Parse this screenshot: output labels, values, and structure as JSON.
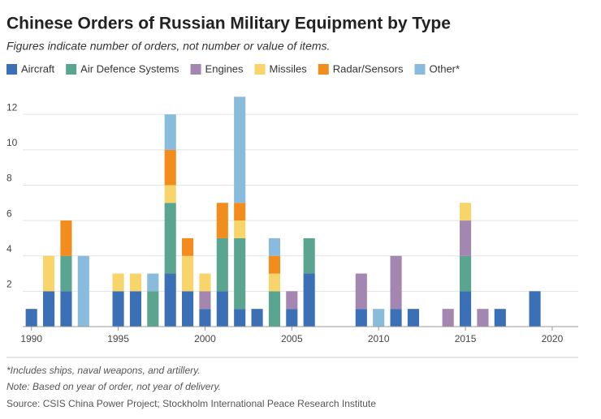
{
  "chart_data": {
    "type": "bar",
    "stacked": true,
    "title": "Chinese Orders of Russian Military Equipment by Type",
    "subtitle": "Figures indicate number of orders, not number or value of items.",
    "notes": [
      "*Includes ships, naval weapons, and artillery.",
      "Note: Based on year of order, not year of delivery."
    ],
    "source": "Source: CSIS China Power Project; Stockholm International Peace Research Institute",
    "x": [
      1990,
      1991,
      1992,
      1993,
      1995,
      1996,
      1997,
      1998,
      1999,
      2000,
      2001,
      2002,
      2003,
      2004,
      2005,
      2006,
      2009,
      2010,
      2011,
      2012,
      2014,
      2015,
      2016,
      2017,
      2019
    ],
    "series": [
      {
        "name": "Aircraft",
        "color": "#3b6fb6",
        "values": [
          1,
          2,
          2,
          0,
          2,
          2,
          0,
          3,
          2,
          1,
          2,
          1,
          1,
          0,
          1,
          3,
          1,
          0,
          1,
          1,
          0,
          2,
          0,
          1,
          2
        ]
      },
      {
        "name": "Air Defence Systems",
        "color": "#59a590",
        "values": [
          0,
          0,
          2,
          0,
          0,
          0,
          2,
          4,
          0,
          0,
          3,
          4,
          0,
          2,
          0,
          2,
          0,
          0,
          0,
          0,
          0,
          2,
          0,
          0,
          0
        ]
      },
      {
        "name": "Engines",
        "color": "#a387b0",
        "values": [
          0,
          0,
          0,
          0,
          0,
          0,
          0,
          0,
          0,
          1,
          0,
          0,
          0,
          0,
          1,
          0,
          2,
          0,
          3,
          0,
          1,
          2,
          1,
          0,
          0
        ]
      },
      {
        "name": "Missiles",
        "color": "#f7d56a",
        "values": [
          0,
          2,
          0,
          0,
          1,
          1,
          0,
          1,
          2,
          1,
          0,
          1,
          0,
          1,
          0,
          0,
          0,
          0,
          0,
          0,
          0,
          1,
          0,
          0,
          0
        ]
      },
      {
        "name": "Radar/Sensors",
        "color": "#f28c1d",
        "values": [
          0,
          0,
          2,
          0,
          0,
          0,
          0,
          2,
          1,
          0,
          2,
          1,
          0,
          1,
          0,
          0,
          0,
          0,
          0,
          0,
          0,
          0,
          0,
          0,
          0
        ]
      },
      {
        "name": "Other*",
        "color": "#88bbdc",
        "values": [
          0,
          0,
          0,
          4,
          0,
          0,
          1,
          2,
          0,
          0,
          0,
          6,
          0,
          1,
          0,
          0,
          0,
          1,
          0,
          0,
          0,
          0,
          0,
          0,
          0
        ]
      }
    ],
    "xlim": [
      1989.5,
      2021.5
    ],
    "xticks": [
      1990,
      1995,
      2000,
      2005,
      2010,
      2015,
      2020
    ],
    "ylim": [
      0,
      13.2
    ],
    "yticks": [
      2,
      4,
      6,
      8,
      10,
      12
    ],
    "grid": true
  }
}
